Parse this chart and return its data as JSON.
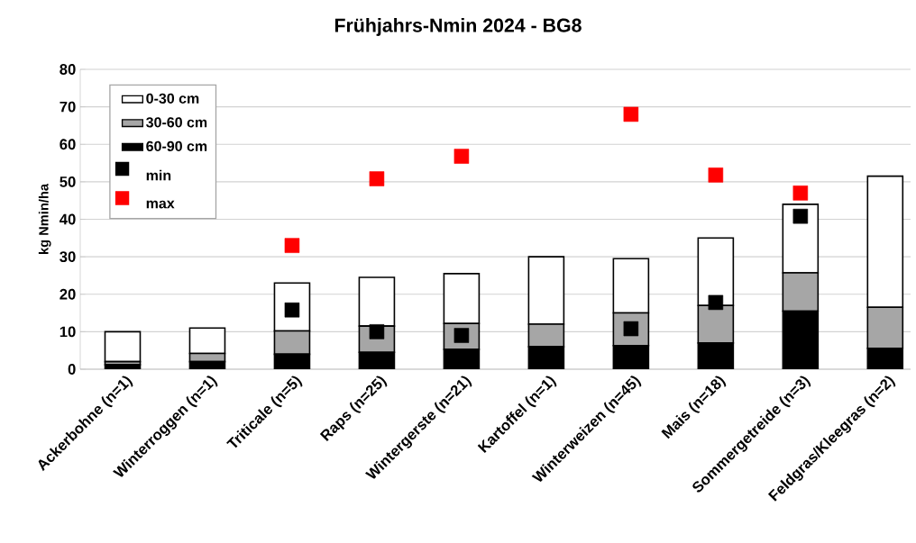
{
  "chart_data": {
    "type": "bar",
    "title": "Frühjahrs-Nmin 2024 - BG8",
    "ylabel": "kg Nmin/ha",
    "stacked": true,
    "categories": [
      "Ackerbohne (n=1)",
      "Winterroggen (n=1)",
      "Triticale (n=5)",
      "Raps (n=25)",
      "Wintergerste (n=21)",
      "Kartoffel (n=1)",
      "Winterweizen (n=45)",
      "Mais (n=18)",
      "Sommergetreide (n=3)",
      "Feldgras/Kleegras (n=2)"
    ],
    "series": [
      {
        "name": "60-90 cm",
        "color": "#000000",
        "values": [
          1.2,
          2,
          4,
          4.5,
          5.3,
          6,
          6.3,
          7,
          15.5,
          5.6
        ]
      },
      {
        "name": "30-60 cm",
        "color": "#a6a6a6",
        "values": [
          0.8,
          2.2,
          6.2,
          7,
          6.9,
          6,
          8.7,
          10,
          10.2,
          10.9
        ]
      },
      {
        "name": "0-30 cm",
        "color": "#ffffff",
        "values": [
          8,
          6.8,
          12.8,
          13,
          13.3,
          18,
          14.5,
          18,
          18.3,
          35
        ]
      },
      {
        "name": "min",
        "type": "scatter",
        "marker": "square",
        "color": "#000000",
        "values": [
          null,
          null,
          15.8,
          10,
          9,
          null,
          10.8,
          17.8,
          40.8,
          null
        ]
      },
      {
        "name": "max",
        "type": "scatter",
        "marker": "square",
        "color": "#ff0000",
        "values": [
          null,
          null,
          33,
          50.8,
          56.8,
          null,
          68,
          51.8,
          47,
          null
        ]
      }
    ],
    "ylim": [
      0,
      80
    ],
    "yticks": [
      0,
      10,
      20,
      30,
      40,
      50,
      60,
      70,
      80
    ],
    "grid": "y",
    "legend": "top left"
  }
}
